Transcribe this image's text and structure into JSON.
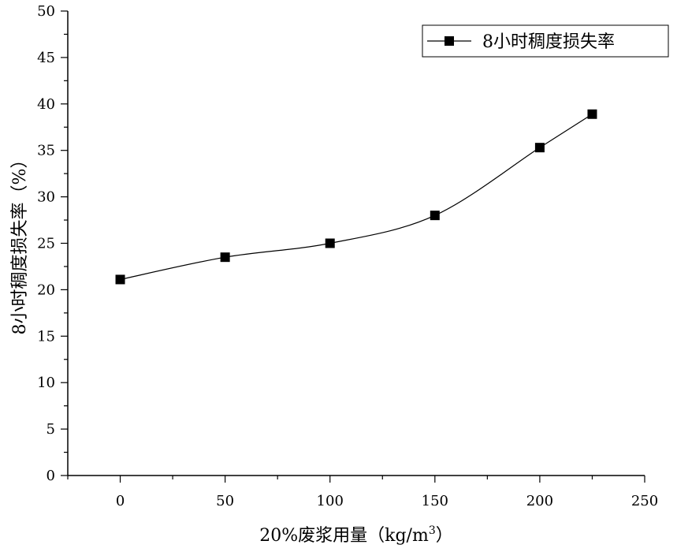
{
  "chart_data": {
    "type": "line",
    "xlabel": "20%废浆用量（kg/m",
    "xlabel_sup": "3",
    "xlabel_close": "）",
    "ylabel": "8小时稠度损失率（%）",
    "xlim": [
      -25,
      250
    ],
    "ylim": [
      0,
      50
    ],
    "x_ticks": [
      0,
      50,
      100,
      150,
      200,
      250
    ],
    "y_ticks": [
      0,
      5,
      10,
      15,
      20,
      25,
      30,
      35,
      40,
      45,
      50
    ],
    "x_tick_labels": [
      "0",
      "50",
      "100",
      "150",
      "200",
      "250"
    ],
    "y_tick_labels": [
      "0",
      "5",
      "10",
      "15",
      "20",
      "25",
      "30",
      "35",
      "40",
      "45",
      "50"
    ],
    "grid": false,
    "legend_position": "top-right",
    "series": [
      {
        "name": "8小时稠度损失率",
        "marker": "square",
        "color": "#000000",
        "line_style": "smooth",
        "x": [
          0,
          50,
          100,
          150,
          200,
          225
        ],
        "y": [
          21.1,
          23.5,
          25.0,
          28.0,
          35.3,
          38.9
        ]
      }
    ]
  }
}
